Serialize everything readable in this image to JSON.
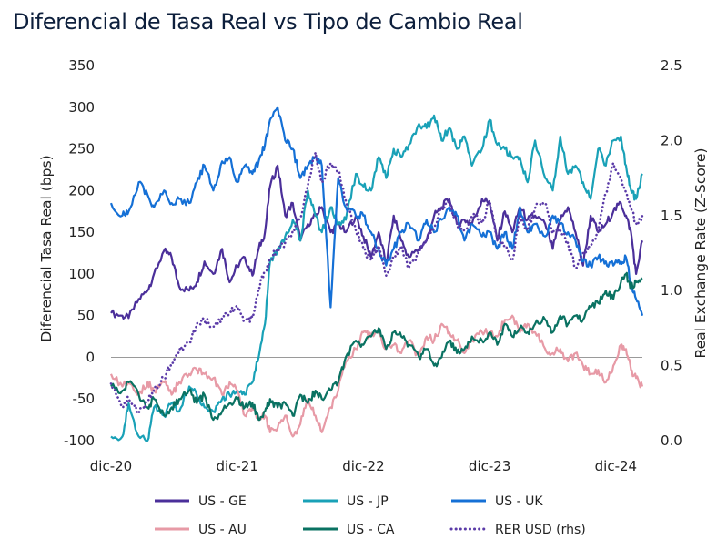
{
  "chart_data": {
    "type": "line",
    "title": "Diferencial de Tasa Real vs Tipo de Cambio Real",
    "ylabel": "Diferencial Tasa Real (bps)",
    "y2label": "Real Exchange Rate (Z-Score)",
    "ylim": [
      -100,
      350
    ],
    "y2lim": [
      0.0,
      2.5
    ],
    "xlim": [
      2020.96,
      2025.17
    ],
    "zero_line": true,
    "x_ticks": [
      {
        "label": "dic-20",
        "x": 2020.96
      },
      {
        "label": "dic-21",
        "x": 2021.96
      },
      {
        "label": "dic-22",
        "x": 2022.96
      },
      {
        "label": "dic-23",
        "x": 2023.96
      },
      {
        "label": "dic-24",
        "x": 2024.96
      }
    ],
    "y_ticks": [
      "-100",
      "-50",
      "0",
      "50",
      "100",
      "150",
      "200",
      "250",
      "300",
      "350"
    ],
    "y2_ticks": [
      "0.0",
      "0.5",
      "1.0",
      "1.5",
      "2.0",
      "2.5"
    ],
    "legend_position": "bottom",
    "series": [
      {
        "name": "US - GE",
        "color": "#4b2f9a",
        "dash": false,
        "axis": "left",
        "x": [
          2020.96,
          2021.05,
          2021.1,
          2021.18,
          2021.25,
          2021.3,
          2021.38,
          2021.44,
          2021.5,
          2021.58,
          2021.64,
          2021.7,
          2021.77,
          2021.84,
          2021.9,
          2021.96,
          2022.02,
          2022.08,
          2022.13,
          2022.18,
          2022.22,
          2022.28,
          2022.34,
          2022.4,
          2022.46,
          2022.52,
          2022.58,
          2022.63,
          2022.7,
          2022.76,
          2022.82,
          2022.9,
          2022.96,
          2023.02,
          2023.08,
          2023.14,
          2023.2,
          2023.26,
          2023.32,
          2023.4,
          2023.46,
          2023.52,
          2023.58,
          2023.64,
          2023.7,
          2023.76,
          2023.82,
          2023.9,
          2023.96,
          2024.02,
          2024.08,
          2024.14,
          2024.2,
          2024.26,
          2024.32,
          2024.4,
          2024.46,
          2024.52,
          2024.58,
          2024.64,
          2024.7,
          2024.76,
          2024.82,
          2024.88,
          2024.94,
          2025.0,
          2025.04,
          2025.08,
          2025.12,
          2025.17
        ],
        "y": [
          53,
          50,
          47,
          70,
          80,
          100,
          128,
          120,
          85,
          80,
          90,
          115,
          100,
          130,
          90,
          110,
          120,
          98,
          130,
          150,
          205,
          230,
          170,
          185,
          140,
          160,
          170,
          180,
          150,
          160,
          150,
          170,
          145,
          120,
          150,
          112,
          170,
          140,
          120,
          130,
          140,
          170,
          180,
          190,
          160,
          165,
          160,
          190,
          185,
          140,
          175,
          150,
          180,
          165,
          170,
          160,
          130,
          165,
          180,
          150,
          110,
          170,
          150,
          160,
          175,
          185,
          170,
          150,
          100,
          140
        ]
      },
      {
        "name": "US - JP",
        "color": "#19a1b7",
        "dash": false,
        "axis": "left",
        "x": [
          2020.96,
          2021.05,
          2021.1,
          2021.18,
          2021.25,
          2021.3,
          2021.38,
          2021.44,
          2021.5,
          2021.58,
          2021.64,
          2021.7,
          2021.77,
          2021.84,
          2021.9,
          2021.96,
          2022.02,
          2022.08,
          2022.13,
          2022.18,
          2022.22,
          2022.28,
          2022.34,
          2022.4,
          2022.46,
          2022.52,
          2022.58,
          2022.63,
          2022.7,
          2022.76,
          2022.82,
          2022.9,
          2022.96,
          2023.02,
          2023.08,
          2023.14,
          2023.2,
          2023.26,
          2023.32,
          2023.4,
          2023.46,
          2023.52,
          2023.58,
          2023.64,
          2023.7,
          2023.76,
          2023.82,
          2023.9,
          2023.96,
          2024.02,
          2024.08,
          2024.14,
          2024.2,
          2024.26,
          2024.32,
          2024.4,
          2024.46,
          2024.52,
          2024.58,
          2024.64,
          2024.7,
          2024.76,
          2024.82,
          2024.88,
          2024.94,
          2025.0,
          2025.04,
          2025.08,
          2025.12,
          2025.17
        ],
        "y": [
          -95,
          -95,
          -55,
          -95,
          -100,
          -60,
          -70,
          -55,
          -65,
          -35,
          -45,
          -60,
          -65,
          -50,
          -45,
          -40,
          -45,
          -30,
          0,
          40,
          115,
          130,
          145,
          165,
          140,
          200,
          170,
          150,
          180,
          160,
          165,
          220,
          205,
          200,
          240,
          215,
          250,
          240,
          255,
          280,
          275,
          290,
          260,
          275,
          250,
          265,
          230,
          250,
          285,
          255,
          250,
          240,
          240,
          210,
          260,
          215,
          200,
          265,
          220,
          230,
          210,
          190,
          250,
          230,
          260,
          265,
          230,
          200,
          190,
          220
        ]
      },
      {
        "name": "US - UK",
        "color": "#1570d6",
        "dash": false,
        "axis": "left",
        "x": [
          2020.96,
          2021.05,
          2021.1,
          2021.18,
          2021.25,
          2021.3,
          2021.38,
          2021.44,
          2021.5,
          2021.58,
          2021.64,
          2021.7,
          2021.77,
          2021.84,
          2021.9,
          2021.96,
          2022.02,
          2022.08,
          2022.13,
          2022.18,
          2022.22,
          2022.28,
          2022.34,
          2022.4,
          2022.46,
          2022.52,
          2022.58,
          2022.63,
          2022.7,
          2022.76,
          2022.82,
          2022.9,
          2022.96,
          2023.02,
          2023.08,
          2023.14,
          2023.2,
          2023.26,
          2023.32,
          2023.4,
          2023.46,
          2023.52,
          2023.58,
          2023.64,
          2023.7,
          2023.76,
          2023.82,
          2023.9,
          2023.96,
          2024.02,
          2024.08,
          2024.14,
          2024.2,
          2024.26,
          2024.32,
          2024.4,
          2024.46,
          2024.52,
          2024.58,
          2024.64,
          2024.7,
          2024.76,
          2024.82,
          2024.88,
          2024.94,
          2025.0,
          2025.04,
          2025.08,
          2025.12,
          2025.17
        ],
        "y": [
          185,
          170,
          175,
          210,
          195,
          180,
          200,
          185,
          190,
          185,
          210,
          230,
          200,
          235,
          240,
          210,
          230,
          220,
          235,
          255,
          285,
          300,
          260,
          250,
          215,
          230,
          240,
          230,
          60,
          215,
          180,
          170,
          170,
          150,
          130,
          110,
          130,
          150,
          160,
          140,
          165,
          150,
          165,
          180,
          170,
          140,
          160,
          145,
          150,
          130,
          150,
          130,
          180,
          150,
          160,
          145,
          170,
          160,
          150,
          140,
          115,
          110,
          120,
          115,
          110,
          115,
          120,
          90,
          70,
          50
        ]
      },
      {
        "name": "US - AU",
        "color": "#e79aa6",
        "dash": false,
        "axis": "left",
        "x": [
          2020.96,
          2021.05,
          2021.1,
          2021.18,
          2021.25,
          2021.3,
          2021.38,
          2021.44,
          2021.5,
          2021.58,
          2021.64,
          2021.7,
          2021.77,
          2021.84,
          2021.9,
          2021.96,
          2022.02,
          2022.08,
          2022.13,
          2022.18,
          2022.22,
          2022.28,
          2022.34,
          2022.4,
          2022.46,
          2022.52,
          2022.58,
          2022.63,
          2022.7,
          2022.76,
          2022.82,
          2022.9,
          2022.96,
          2023.02,
          2023.08,
          2023.14,
          2023.2,
          2023.26,
          2023.32,
          2023.4,
          2023.46,
          2023.52,
          2023.58,
          2023.64,
          2023.7,
          2023.76,
          2023.82,
          2023.9,
          2023.96,
          2024.02,
          2024.08,
          2024.14,
          2024.2,
          2024.26,
          2024.32,
          2024.4,
          2024.46,
          2024.52,
          2024.58,
          2024.64,
          2024.7,
          2024.76,
          2024.82,
          2024.88,
          2024.94,
          2025.0,
          2025.04,
          2025.08,
          2025.12,
          2025.17
        ],
        "y": [
          -20,
          -35,
          -30,
          -45,
          -30,
          -40,
          -30,
          -45,
          -30,
          -20,
          -15,
          -20,
          -25,
          -45,
          -30,
          -40,
          -70,
          -60,
          -75,
          -70,
          -90,
          -85,
          -70,
          -95,
          -80,
          -50,
          -70,
          -90,
          -60,
          -40,
          -5,
          10,
          30,
          25,
          30,
          10,
          15,
          5,
          20,
          0,
          25,
          20,
          40,
          30,
          20,
          5,
          20,
          30,
          30,
          25,
          45,
          50,
          30,
          40,
          30,
          10,
          5,
          10,
          -5,
          5,
          -10,
          -20,
          -15,
          -30,
          -10,
          15,
          10,
          -15,
          -25,
          -35
        ]
      },
      {
        "name": "US - CA",
        "color": "#0a7262",
        "dash": false,
        "axis": "left",
        "x": [
          2020.96,
          2021.05,
          2021.1,
          2021.18,
          2021.25,
          2021.3,
          2021.38,
          2021.44,
          2021.5,
          2021.58,
          2021.64,
          2021.7,
          2021.77,
          2021.84,
          2021.9,
          2021.96,
          2022.02,
          2022.08,
          2022.13,
          2022.18,
          2022.22,
          2022.28,
          2022.34,
          2022.4,
          2022.46,
          2022.52,
          2022.58,
          2022.63,
          2022.7,
          2022.76,
          2022.82,
          2022.9,
          2022.96,
          2023.02,
          2023.08,
          2023.14,
          2023.2,
          2023.26,
          2023.32,
          2023.4,
          2023.46,
          2023.52,
          2023.58,
          2023.64,
          2023.7,
          2023.76,
          2023.82,
          2023.9,
          2023.96,
          2024.02,
          2024.08,
          2024.14,
          2024.2,
          2024.26,
          2024.32,
          2024.4,
          2024.46,
          2024.52,
          2024.58,
          2024.64,
          2024.7,
          2024.76,
          2024.82,
          2024.88,
          2024.94,
          2025.0,
          2025.04,
          2025.08,
          2025.12,
          2025.17
        ],
        "y": [
          -35,
          -40,
          -30,
          -45,
          -60,
          -50,
          -70,
          -60,
          -50,
          -40,
          -55,
          -45,
          -75,
          -65,
          -55,
          -50,
          -60,
          -55,
          -75,
          -65,
          -50,
          -60,
          -55,
          -70,
          -45,
          -55,
          -40,
          -50,
          -40,
          -30,
          0,
          20,
          15,
          25,
          35,
          10,
          30,
          25,
          15,
          0,
          10,
          -10,
          0,
          20,
          5,
          10,
          25,
          20,
          30,
          15,
          40,
          25,
          35,
          30,
          40,
          45,
          30,
          50,
          40,
          50,
          45,
          60,
          65,
          80,
          70,
          90,
          100,
          85,
          90,
          95
        ]
      },
      {
        "name": "RER USD (rhs)",
        "color": "#5b3ba8",
        "dash": true,
        "axis": "right",
        "x": [
          2020.96,
          2021.05,
          2021.1,
          2021.18,
          2021.25,
          2021.3,
          2021.38,
          2021.44,
          2021.5,
          2021.58,
          2021.64,
          2021.7,
          2021.77,
          2021.84,
          2021.9,
          2021.96,
          2022.02,
          2022.08,
          2022.13,
          2022.18,
          2022.22,
          2022.28,
          2022.34,
          2022.4,
          2022.46,
          2022.52,
          2022.58,
          2022.63,
          2022.7,
          2022.76,
          2022.82,
          2022.9,
          2022.96,
          2023.02,
          2023.08,
          2023.14,
          2023.2,
          2023.26,
          2023.32,
          2023.4,
          2023.46,
          2023.52,
          2023.58,
          2023.64,
          2023.7,
          2023.76,
          2023.82,
          2023.9,
          2023.96,
          2024.02,
          2024.08,
          2024.14,
          2024.2,
          2024.26,
          2024.32,
          2024.4,
          2024.46,
          2024.52,
          2024.58,
          2024.64,
          2024.7,
          2024.76,
          2024.82,
          2024.88,
          2024.94,
          2025.0,
          2025.04,
          2025.08,
          2025.12,
          2025.17
        ],
        "y": [
          0.38,
          0.22,
          0.28,
          0.18,
          0.26,
          0.34,
          0.42,
          0.52,
          0.6,
          0.65,
          0.78,
          0.8,
          0.76,
          0.82,
          0.85,
          0.9,
          0.8,
          0.82,
          1.02,
          1.12,
          1.2,
          1.28,
          1.32,
          1.4,
          1.48,
          1.7,
          1.92,
          1.72,
          1.85,
          1.8,
          1.6,
          1.4,
          1.28,
          1.2,
          1.3,
          1.1,
          1.22,
          1.3,
          1.15,
          1.25,
          1.35,
          1.42,
          1.55,
          1.58,
          1.45,
          1.4,
          1.5,
          1.45,
          1.6,
          1.35,
          1.3,
          1.2,
          1.5,
          1.4,
          1.55,
          1.58,
          1.38,
          1.4,
          1.32,
          1.15,
          1.25,
          1.3,
          1.4,
          1.65,
          1.85,
          1.75,
          1.65,
          1.55,
          1.45,
          1.5
        ]
      }
    ]
  }
}
